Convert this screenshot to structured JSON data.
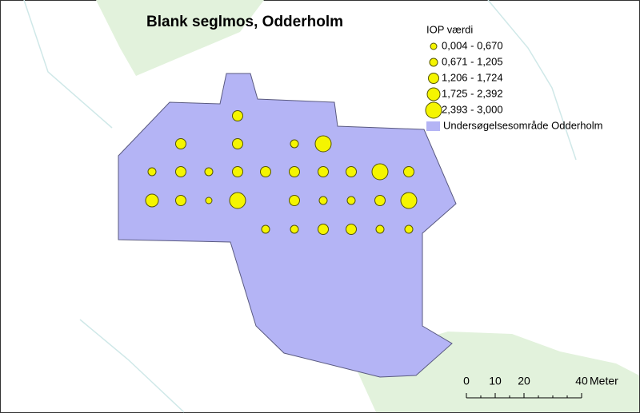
{
  "title": "Blank seglmos, Odderholm",
  "legend": {
    "title": "IOP værdi",
    "classes": [
      "0,004 - 0,670",
      "0,671 - 1,205",
      "1,206 - 1,724",
      "1,725 - 2,392",
      "2,393 - 3,000"
    ],
    "area": "Undersøgelsesområde Odderholm"
  },
  "scale_bar": {
    "ticks": [
      0,
      10,
      20,
      40
    ],
    "unit": "Meter"
  }
}
